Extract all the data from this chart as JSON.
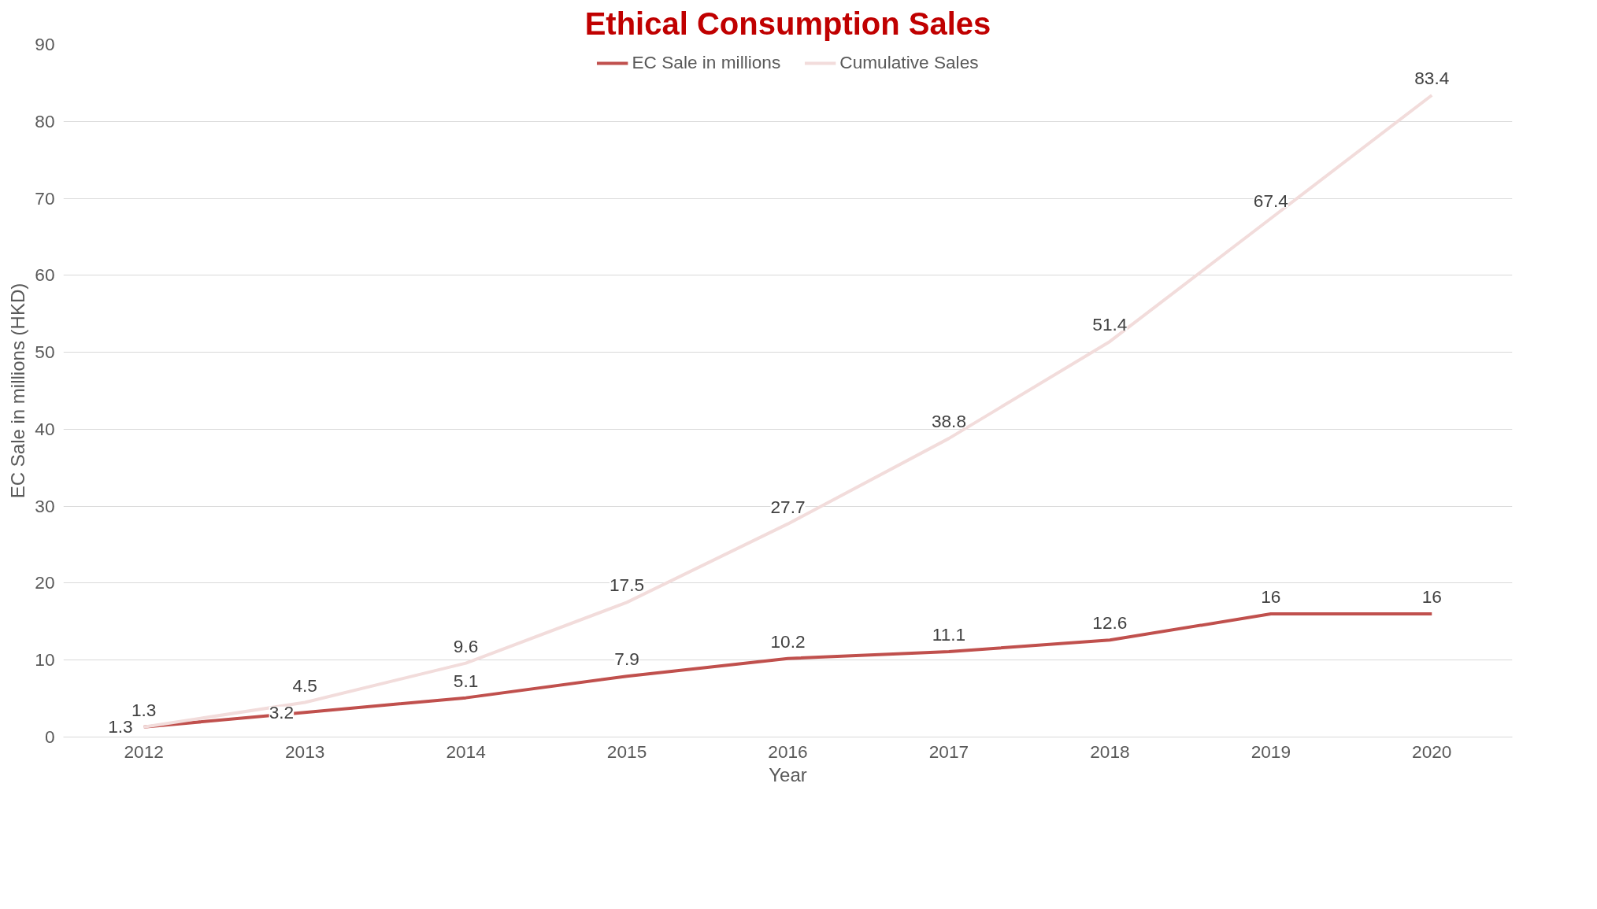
{
  "chart_data": {
    "type": "line",
    "title": "Ethical Consumption Sales",
    "xlabel": "Year",
    "ylabel": "EC Sale in millions (HKD)",
    "categories": [
      "2012",
      "2013",
      "2014",
      "2015",
      "2016",
      "2017",
      "2018",
      "2019",
      "2020"
    ],
    "series": [
      {
        "name": "EC Sale in millions",
        "color": "#c0504d",
        "values": [
          1.3,
          3.2,
          5.1,
          7.9,
          10.2,
          11.1,
          12.6,
          16,
          16
        ]
      },
      {
        "name": "Cumulative Sales",
        "color": "#f2dcdb",
        "values": [
          1.3,
          4.5,
          9.6,
          17.5,
          27.7,
          38.8,
          51.4,
          67.4,
          83.4
        ]
      }
    ],
    "ylim": [
      0,
      90
    ],
    "yticks": [
      0,
      10,
      20,
      30,
      40,
      50,
      60,
      70,
      80,
      90
    ],
    "grid": "y",
    "legend": "top",
    "data_labels": true,
    "marker": "none",
    "line_style": "solid"
  }
}
